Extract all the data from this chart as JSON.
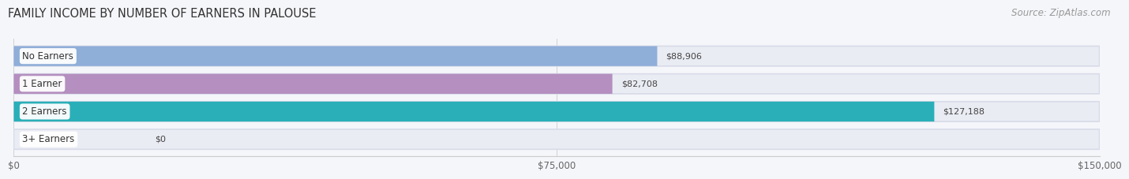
{
  "title": "FAMILY INCOME BY NUMBER OF EARNERS IN PALOUSE",
  "source": "Source: ZipAtlas.com",
  "categories": [
    "No Earners",
    "1 Earner",
    "2 Earners",
    "3+ Earners"
  ],
  "values": [
    88906,
    82708,
    127188,
    0
  ],
  "bar_colors": [
    "#8FAED8",
    "#B48FBF",
    "#2AAFB8",
    "#A8B4E8"
  ],
  "bar_bg_color": "#EAECF4",
  "label_colors": [
    "#444444",
    "#444444",
    "#ffffff",
    "#444444"
  ],
  "value_labels": [
    "$88,906",
    "$82,708",
    "$127,188",
    "$0"
  ],
  "xmax": 150000,
  "xticks": [
    0,
    75000,
    150000
  ],
  "xtick_labels": [
    "$0",
    "$75,000",
    "$150,000"
  ],
  "background_color": "#F5F6FA",
  "title_fontsize": 10.5,
  "source_fontsize": 8.5
}
